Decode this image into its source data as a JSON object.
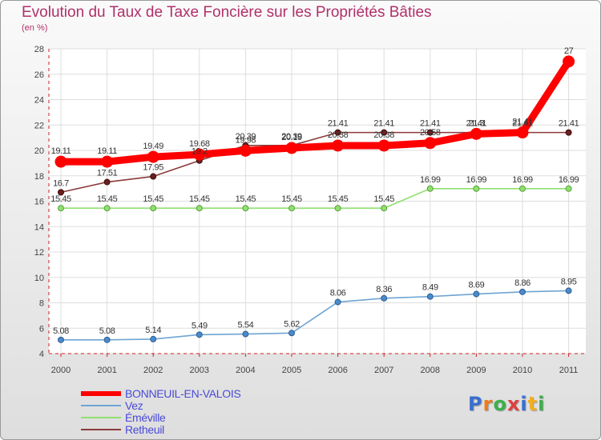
{
  "header": {
    "title": "Evolution du Taux de Taxe Foncière sur les Propriétés Bâties",
    "subtitle": "(en %)"
  },
  "logo": {
    "text": "Proxiti",
    "colors": [
      "#3a6fd0",
      "#f07a1a",
      "#3ab04a",
      "#e04040",
      "#3a6fd0",
      "#f0b020",
      "#3ab04a"
    ]
  },
  "chart_data": {
    "type": "line",
    "x": [
      "2000",
      "2001",
      "2002",
      "2003",
      "2004",
      "2005",
      "2006",
      "2007",
      "2008",
      "2009",
      "2010",
      "2011"
    ],
    "ylim": [
      4,
      28
    ],
    "yticks": [
      4,
      6,
      8,
      10,
      12,
      14,
      16,
      18,
      20,
      22,
      24,
      26,
      28
    ],
    "grid": true,
    "legend_position": "bottom-left",
    "series": [
      {
        "name": "BONNEUIL-EN-VALOIS",
        "color": "#ff0000",
        "values": [
          19.11,
          19.11,
          19.49,
          19.68,
          19.98,
          20.19,
          20.38,
          20.38,
          20.58,
          21.3,
          21.41,
          27
        ],
        "labels": [
          "19.11",
          "19.11",
          "19.49",
          "19.68",
          "19.98",
          "20.19",
          "20.38",
          "20.38",
          "20.58",
          "21.3",
          "21.41",
          "27"
        ]
      },
      {
        "name": "Vez",
        "color": "#6fa4d4",
        "values": [
          5.08,
          5.08,
          5.14,
          5.49,
          5.54,
          5.62,
          8.06,
          8.36,
          8.49,
          8.69,
          8.86,
          8.95
        ],
        "labels": [
          "5.08",
          "5.08",
          "5.14",
          "5.49",
          "5.54",
          "5.62",
          "8.06",
          "8.36",
          "8.49",
          "8.69",
          "8.86",
          "8.95"
        ]
      },
      {
        "name": "Éméville",
        "color": "#90e070",
        "values": [
          15.45,
          15.45,
          15.45,
          15.45,
          15.45,
          15.45,
          15.45,
          15.45,
          16.99,
          16.99,
          16.99,
          16.99
        ],
        "labels": [
          "15.45",
          "15.45",
          "15.45",
          "15.45",
          "15.45",
          "15.45",
          "15.45",
          "15.45",
          "16.99",
          "16.99",
          "16.99",
          "16.99"
        ]
      },
      {
        "name": "Retheuil",
        "color": "#8b3a3a",
        "values": [
          16.7,
          17.51,
          17.95,
          19.2,
          20.39,
          20.39,
          21.41,
          21.41,
          21.41,
          21.41,
          21.41,
          21.41
        ],
        "labels": [
          "16.7",
          "17.51",
          "17.95",
          "19.2",
          "20.39",
          "20.39",
          "21.41",
          "21.41",
          "21.41",
          "21.41",
          "21.41",
          "21.41"
        ]
      }
    ]
  }
}
